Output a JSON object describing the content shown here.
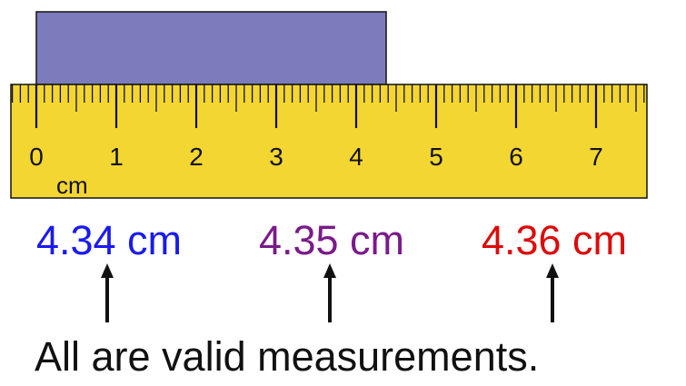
{
  "ruler": {
    "labels": [
      "0",
      "1",
      "2",
      "3",
      "4",
      "5",
      "6",
      "7"
    ],
    "unit": "cm"
  },
  "measurements": [
    {
      "text": "4.34 cm",
      "color": "#1a1aee"
    },
    {
      "text": "4.35 cm",
      "color": "#7a1a8a"
    },
    {
      "text": "4.36 cm",
      "color": "#dd0a0a"
    }
  ],
  "caption": "All are valid measurements."
}
